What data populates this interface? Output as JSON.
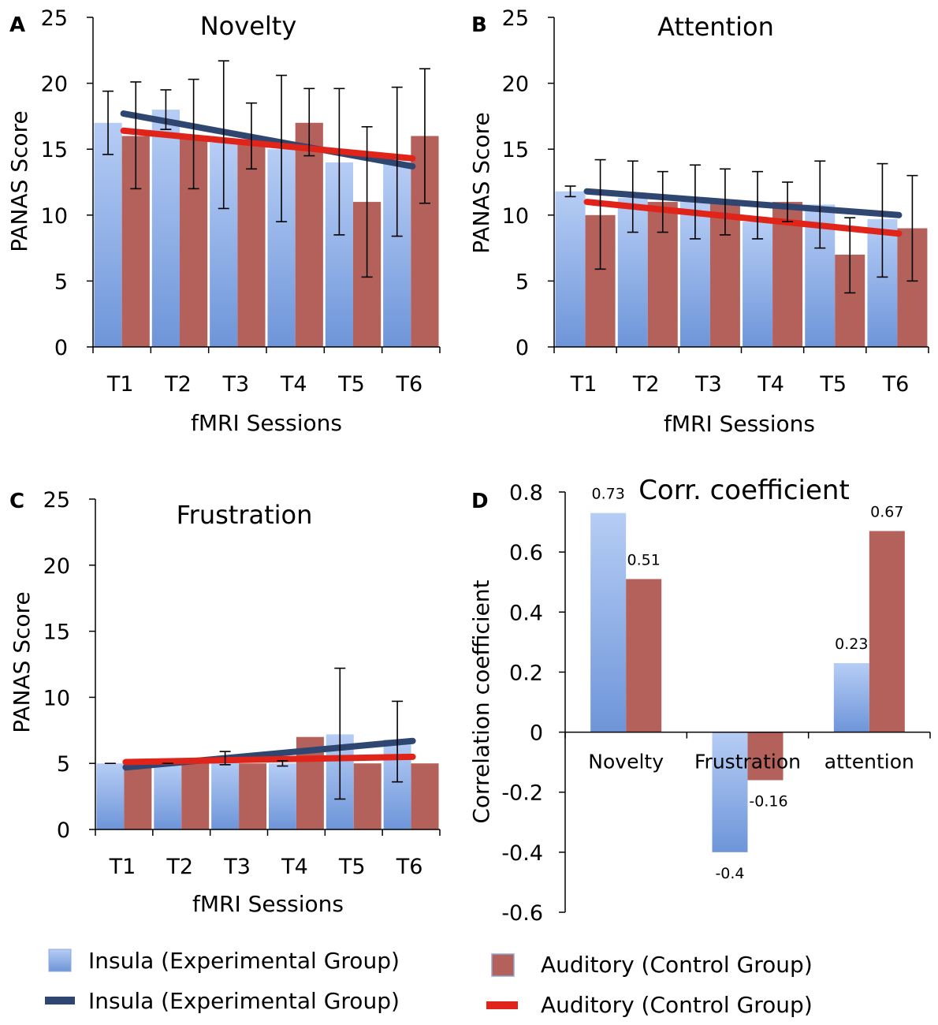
{
  "colors": {
    "insula_bar_top": "#b6cdf5",
    "insula_bar_bottom": "#6e95d9",
    "auditory_bar": "#b5615b",
    "insula_line": "#2e4670",
    "auditory_line": "#e0241a"
  },
  "chart_data": [
    {
      "panel_label": "A",
      "type": "bar",
      "title": "Novelty",
      "xlabel": "fMRI Sessions",
      "ylabel": "PANAS Score",
      "ylim": [
        0,
        25
      ],
      "yticks": [
        "0",
        "5",
        "10",
        "15",
        "20",
        "25"
      ],
      "categories": [
        "T1",
        "T2",
        "T3",
        "T4",
        "T5",
        "T6"
      ],
      "series": [
        {
          "name": "Insula (Experimental Group)",
          "values": [
            17,
            18,
            15.5,
            15,
            14,
            14
          ],
          "err_low": [
            14.6,
            16.5,
            10.5,
            9.5,
            8.5,
            8.4
          ],
          "err_high": [
            19.4,
            19.5,
            21.7,
            20.6,
            19.6,
            19.7
          ],
          "trend": [
            17.7,
            13.7
          ]
        },
        {
          "name": "Auditory (Control Group)",
          "values": [
            16,
            16,
            15.5,
            17,
            11,
            16
          ],
          "err_low": [
            12,
            12,
            13.5,
            14.5,
            5.3,
            10.9
          ],
          "err_high": [
            20.1,
            20.3,
            18.5,
            19.6,
            16.7,
            21.1
          ],
          "trend": [
            16.4,
            14.3
          ]
        }
      ]
    },
    {
      "panel_label": "B",
      "type": "bar",
      "title": "Attention",
      "xlabel": "fMRI Sessions",
      "ylabel": "PANAS Score",
      "ylim": [
        0,
        25
      ],
      "yticks": [
        "0",
        "5",
        "10",
        "15",
        "20",
        "25"
      ],
      "categories": [
        "T1",
        "T2",
        "T3",
        "T4",
        "T5",
        "T6"
      ],
      "series": [
        {
          "name": "Insula (Experimental Group)",
          "values": [
            11.8,
            11.3,
            11,
            9.5,
            10.8,
            9.7
          ],
          "err_low": [
            11.4,
            8.7,
            8.2,
            8.2,
            7.5,
            5.3
          ],
          "err_high": [
            12.2,
            14.1,
            13.8,
            13.3,
            14.1,
            13.9
          ],
          "trend": [
            11.8,
            10
          ]
        },
        {
          "name": "Auditory (Control Group)",
          "values": [
            10,
            11,
            11,
            11,
            7,
            9
          ],
          "err_low": [
            5.9,
            8.7,
            8.5,
            9.5,
            4.1,
            5
          ],
          "err_high": [
            14.2,
            13.3,
            13.5,
            12.5,
            9.8,
            13
          ],
          "trend": [
            11,
            8.6
          ]
        }
      ]
    },
    {
      "panel_label": "C",
      "type": "bar",
      "title": "Frustration",
      "xlabel": "fMRI Sessions",
      "ylabel": "PANAS Score",
      "ylim": [
        0,
        25
      ],
      "yticks": [
        "0",
        "5",
        "10",
        "15",
        "20",
        "25"
      ],
      "categories": [
        "T1",
        "T2",
        "T3",
        "T4",
        "T5",
        "T6"
      ],
      "series": [
        {
          "name": "Insula (Experimental Group)",
          "values": [
            5,
            5,
            5.4,
            5,
            7.2,
            6.8
          ],
          "err_low": [
            5,
            5,
            4.9,
            4.8,
            2.3,
            3.6
          ],
          "err_high": [
            5,
            5,
            5.9,
            5.2,
            12.2,
            9.7
          ],
          "trend": [
            4.7,
            6.7
          ]
        },
        {
          "name": "Auditory (Control Group)",
          "values": [
            5,
            5,
            5,
            7,
            5,
            5
          ],
          "err_low": [
            5,
            5,
            5,
            7,
            5,
            5
          ],
          "err_high": [
            5,
            5,
            5,
            7,
            5,
            5
          ],
          "trend": [
            5.1,
            5.5
          ]
        }
      ]
    },
    {
      "panel_label": "D",
      "type": "bar",
      "title": "Corr. coefficient",
      "xlabel": "",
      "ylabel": "Correlation coefficient",
      "ylim": [
        -0.6,
        0.8
      ],
      "yticks": [
        "-0.6",
        "-0.4",
        "-0.2",
        "0",
        "0.2",
        "0.4",
        "0.6",
        "0.8"
      ],
      "categories": [
        "Novelty",
        "Frustration",
        "attention"
      ],
      "series": [
        {
          "name": "Insula (Experimental Group)",
          "values": [
            0.73,
            -0.4,
            0.23
          ],
          "labels": [
            "0.73",
            "-0.4",
            "0.23"
          ]
        },
        {
          "name": "Auditory (Control Group)",
          "values": [
            0.51,
            -0.16,
            0.67
          ],
          "labels": [
            "0.51",
            "-0.16",
            "0.67"
          ]
        }
      ]
    }
  ],
  "legend": {
    "insula_bar": "Insula (Experimental Group)",
    "insula_line": "Insula (Experimental Group)",
    "auditory_bar": "Auditory (Control Group)",
    "auditory_line": "Auditory (Control Group)"
  }
}
